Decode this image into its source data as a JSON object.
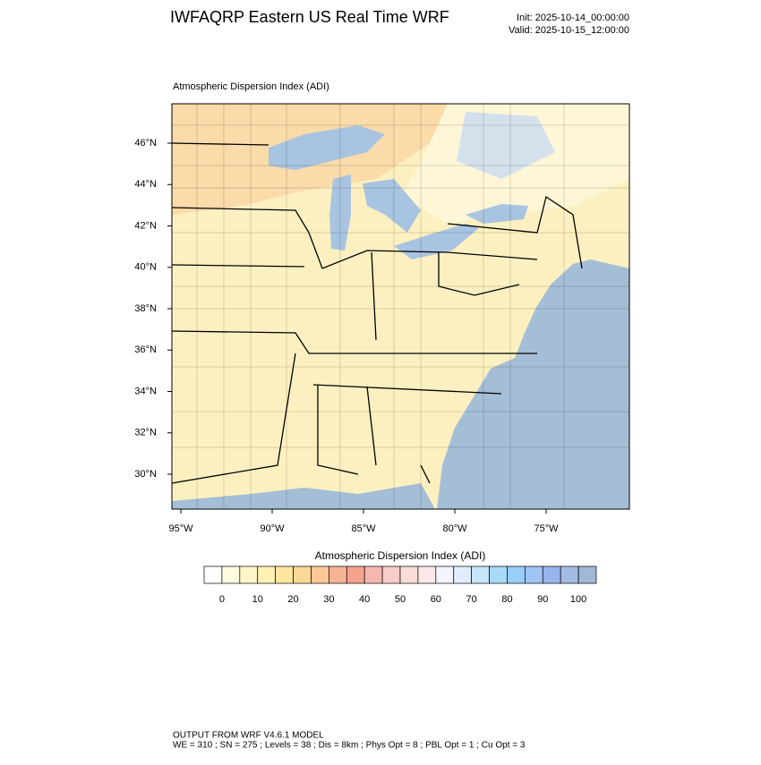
{
  "header": {
    "title": "IWFAQRP Eastern US Real Time WRF",
    "init": "Init: 2025-10-14_00:00:00",
    "valid": "Valid: 2025-10-15_12:00:00"
  },
  "map": {
    "title": "Atmospheric Dispersion Index   (ADI)",
    "lat_labels": [
      "46°N",
      "44°N",
      "42°N",
      "40°N",
      "38°N",
      "36°N",
      "34°N",
      "32°N",
      "30°N"
    ],
    "lon_labels": [
      "95°W",
      "90°W",
      "85°W",
      "80°W",
      "75°W"
    ]
  },
  "colorbar": {
    "title": "Atmospheric Dispersion Index  (ADI)",
    "colors": [
      "#ffffff",
      "#fffbe0",
      "#fff5c8",
      "#fff0b4",
      "#ffe6a0",
      "#fcd896",
      "#f9c896",
      "#f6b494",
      "#f4a48c",
      "#f5b8b0",
      "#f8ccc8",
      "#fadcd8",
      "#fce8e8",
      "#f4f4fc",
      "#e0ecfc",
      "#c8e4fa",
      "#a8daf8",
      "#98cef8",
      "#a0c4f4",
      "#98b4ec",
      "#a4bce4",
      "#a0b8d4"
    ],
    "ticks": [
      0,
      10,
      20,
      30,
      40,
      50,
      60,
      70,
      80,
      90,
      100
    ]
  },
  "footer": {
    "line1": "OUTPUT FROM WRF V4.6.1 MODEL",
    "line2": "WE = 310 ; SN = 275 ; Levels = 38 ; Dis = 8km ; Phys Opt = 8 ; PBL Opt = 1 ; Cu Opt = 3"
  }
}
